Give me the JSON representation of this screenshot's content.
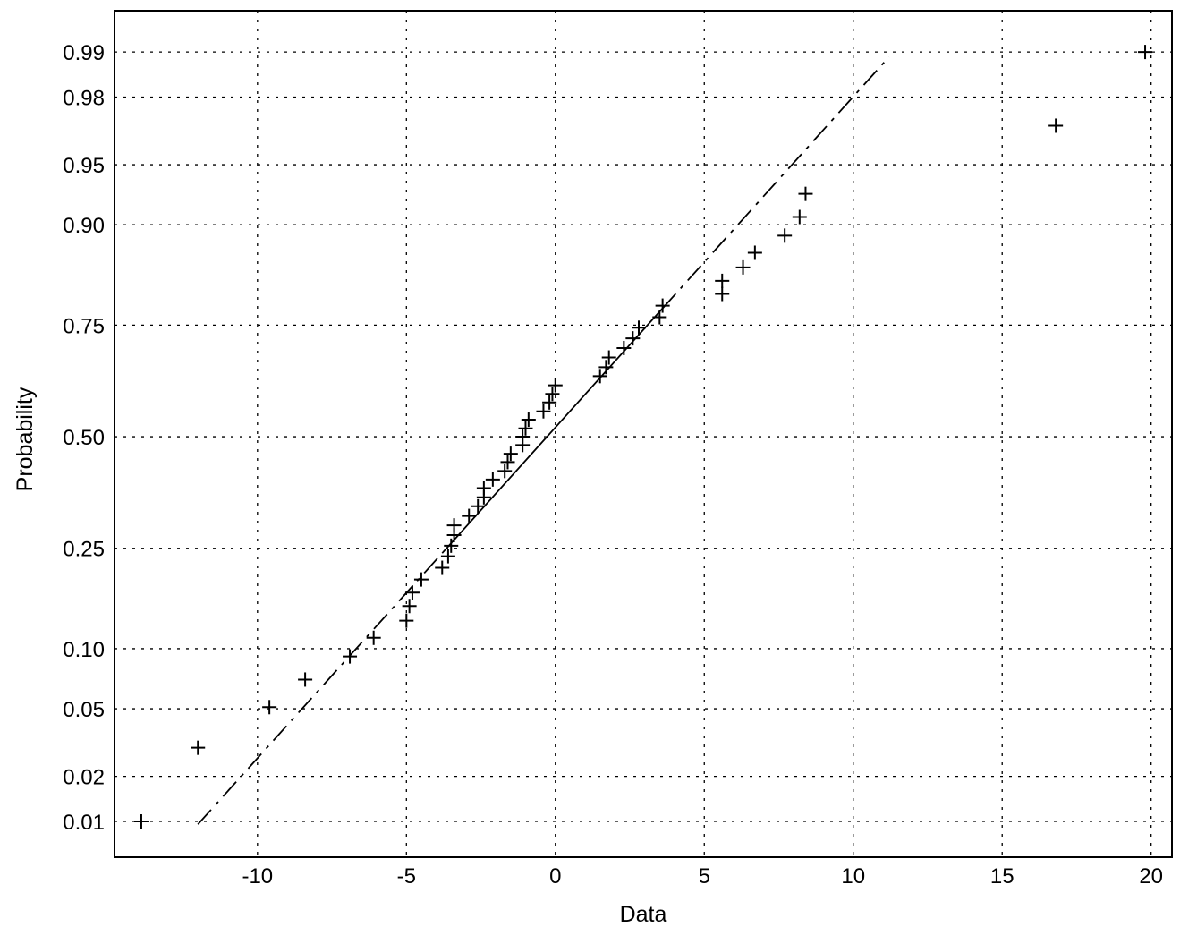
{
  "chart_data": {
    "type": "scatter",
    "title": "",
    "xlabel": "Data",
    "ylabel": "Probability",
    "xlim": [
      -14.8,
      20.7
    ],
    "ylim_probability": [
      0.0055,
      0.995
    ],
    "y_scale": "normal-probability",
    "grid": true,
    "x_ticks": [
      -10,
      -5,
      0,
      5,
      10,
      15,
      20
    ],
    "x_tick_labels": [
      "-10",
      "-5",
      "0",
      "5",
      "10",
      "15",
      "20"
    ],
    "y_ticks": [
      0.01,
      0.02,
      0.05,
      0.1,
      0.25,
      0.5,
      0.75,
      0.9,
      0.95,
      0.98,
      0.99
    ],
    "y_tick_labels": [
      "0.01",
      "0.02",
      "0.05",
      "0.10",
      "0.25",
      "0.50",
      "0.75",
      "0.90",
      "0.95",
      "0.98",
      "0.99"
    ],
    "reference_line": {
      "segments": [
        {
          "style": "dash-dot",
          "x": [
            -12.0,
            -3.8
          ]
        },
        {
          "style": "solid",
          "x": [
            -3.8,
            3.6
          ]
        },
        {
          "style": "dash-dot",
          "x": [
            3.6,
            11.2
          ]
        }
      ],
      "mean": -0.28,
      "std": 5.0
    },
    "series": [
      {
        "marker": "+",
        "points": [
          {
            "x": -13.9,
            "p": 0.01
          },
          {
            "x": -12.0,
            "p": 0.03
          },
          {
            "x": -9.6,
            "p": 0.051
          },
          {
            "x": -8.4,
            "p": 0.071
          },
          {
            "x": -6.9,
            "p": 0.092
          },
          {
            "x": -6.1,
            "p": 0.112
          },
          {
            "x": -5.0,
            "p": 0.133
          },
          {
            "x": -4.9,
            "p": 0.153
          },
          {
            "x": -4.8,
            "p": 0.173
          },
          {
            "x": -4.5,
            "p": 0.194
          },
          {
            "x": -3.8,
            "p": 0.214
          },
          {
            "x": -3.6,
            "p": 0.235
          },
          {
            "x": -3.5,
            "p": 0.255
          },
          {
            "x": -3.4,
            "p": 0.276
          },
          {
            "x": -3.4,
            "p": 0.296
          },
          {
            "x": -2.9,
            "p": 0.316
          },
          {
            "x": -2.6,
            "p": 0.337
          },
          {
            "x": -2.4,
            "p": 0.357
          },
          {
            "x": -2.4,
            "p": 0.378
          },
          {
            "x": -2.1,
            "p": 0.398
          },
          {
            "x": -1.7,
            "p": 0.418
          },
          {
            "x": -1.6,
            "p": 0.439
          },
          {
            "x": -1.5,
            "p": 0.459
          },
          {
            "x": -1.1,
            "p": 0.48
          },
          {
            "x": -1.1,
            "p": 0.5
          },
          {
            "x": -1.0,
            "p": 0.52
          },
          {
            "x": -0.9,
            "p": 0.541
          },
          {
            "x": -0.4,
            "p": 0.561
          },
          {
            "x": -0.2,
            "p": 0.582
          },
          {
            "x": -0.1,
            "p": 0.602
          },
          {
            "x": 0.0,
            "p": 0.622
          },
          {
            "x": 1.5,
            "p": 0.643
          },
          {
            "x": 1.7,
            "p": 0.663
          },
          {
            "x": 1.8,
            "p": 0.684
          },
          {
            "x": 2.3,
            "p": 0.704
          },
          {
            "x": 2.6,
            "p": 0.724
          },
          {
            "x": 2.8,
            "p": 0.745
          },
          {
            "x": 3.5,
            "p": 0.765
          },
          {
            "x": 3.6,
            "p": 0.786
          },
          {
            "x": 5.6,
            "p": 0.806
          },
          {
            "x": 5.6,
            "p": 0.827
          },
          {
            "x": 6.3,
            "p": 0.847
          },
          {
            "x": 6.7,
            "p": 0.867
          },
          {
            "x": 7.7,
            "p": 0.888
          },
          {
            "x": 8.2,
            "p": 0.908
          },
          {
            "x": 8.4,
            "p": 0.929
          },
          {
            "x": 16.8,
            "p": 0.97
          },
          {
            "x": 19.8,
            "p": 0.99
          }
        ]
      }
    ]
  }
}
